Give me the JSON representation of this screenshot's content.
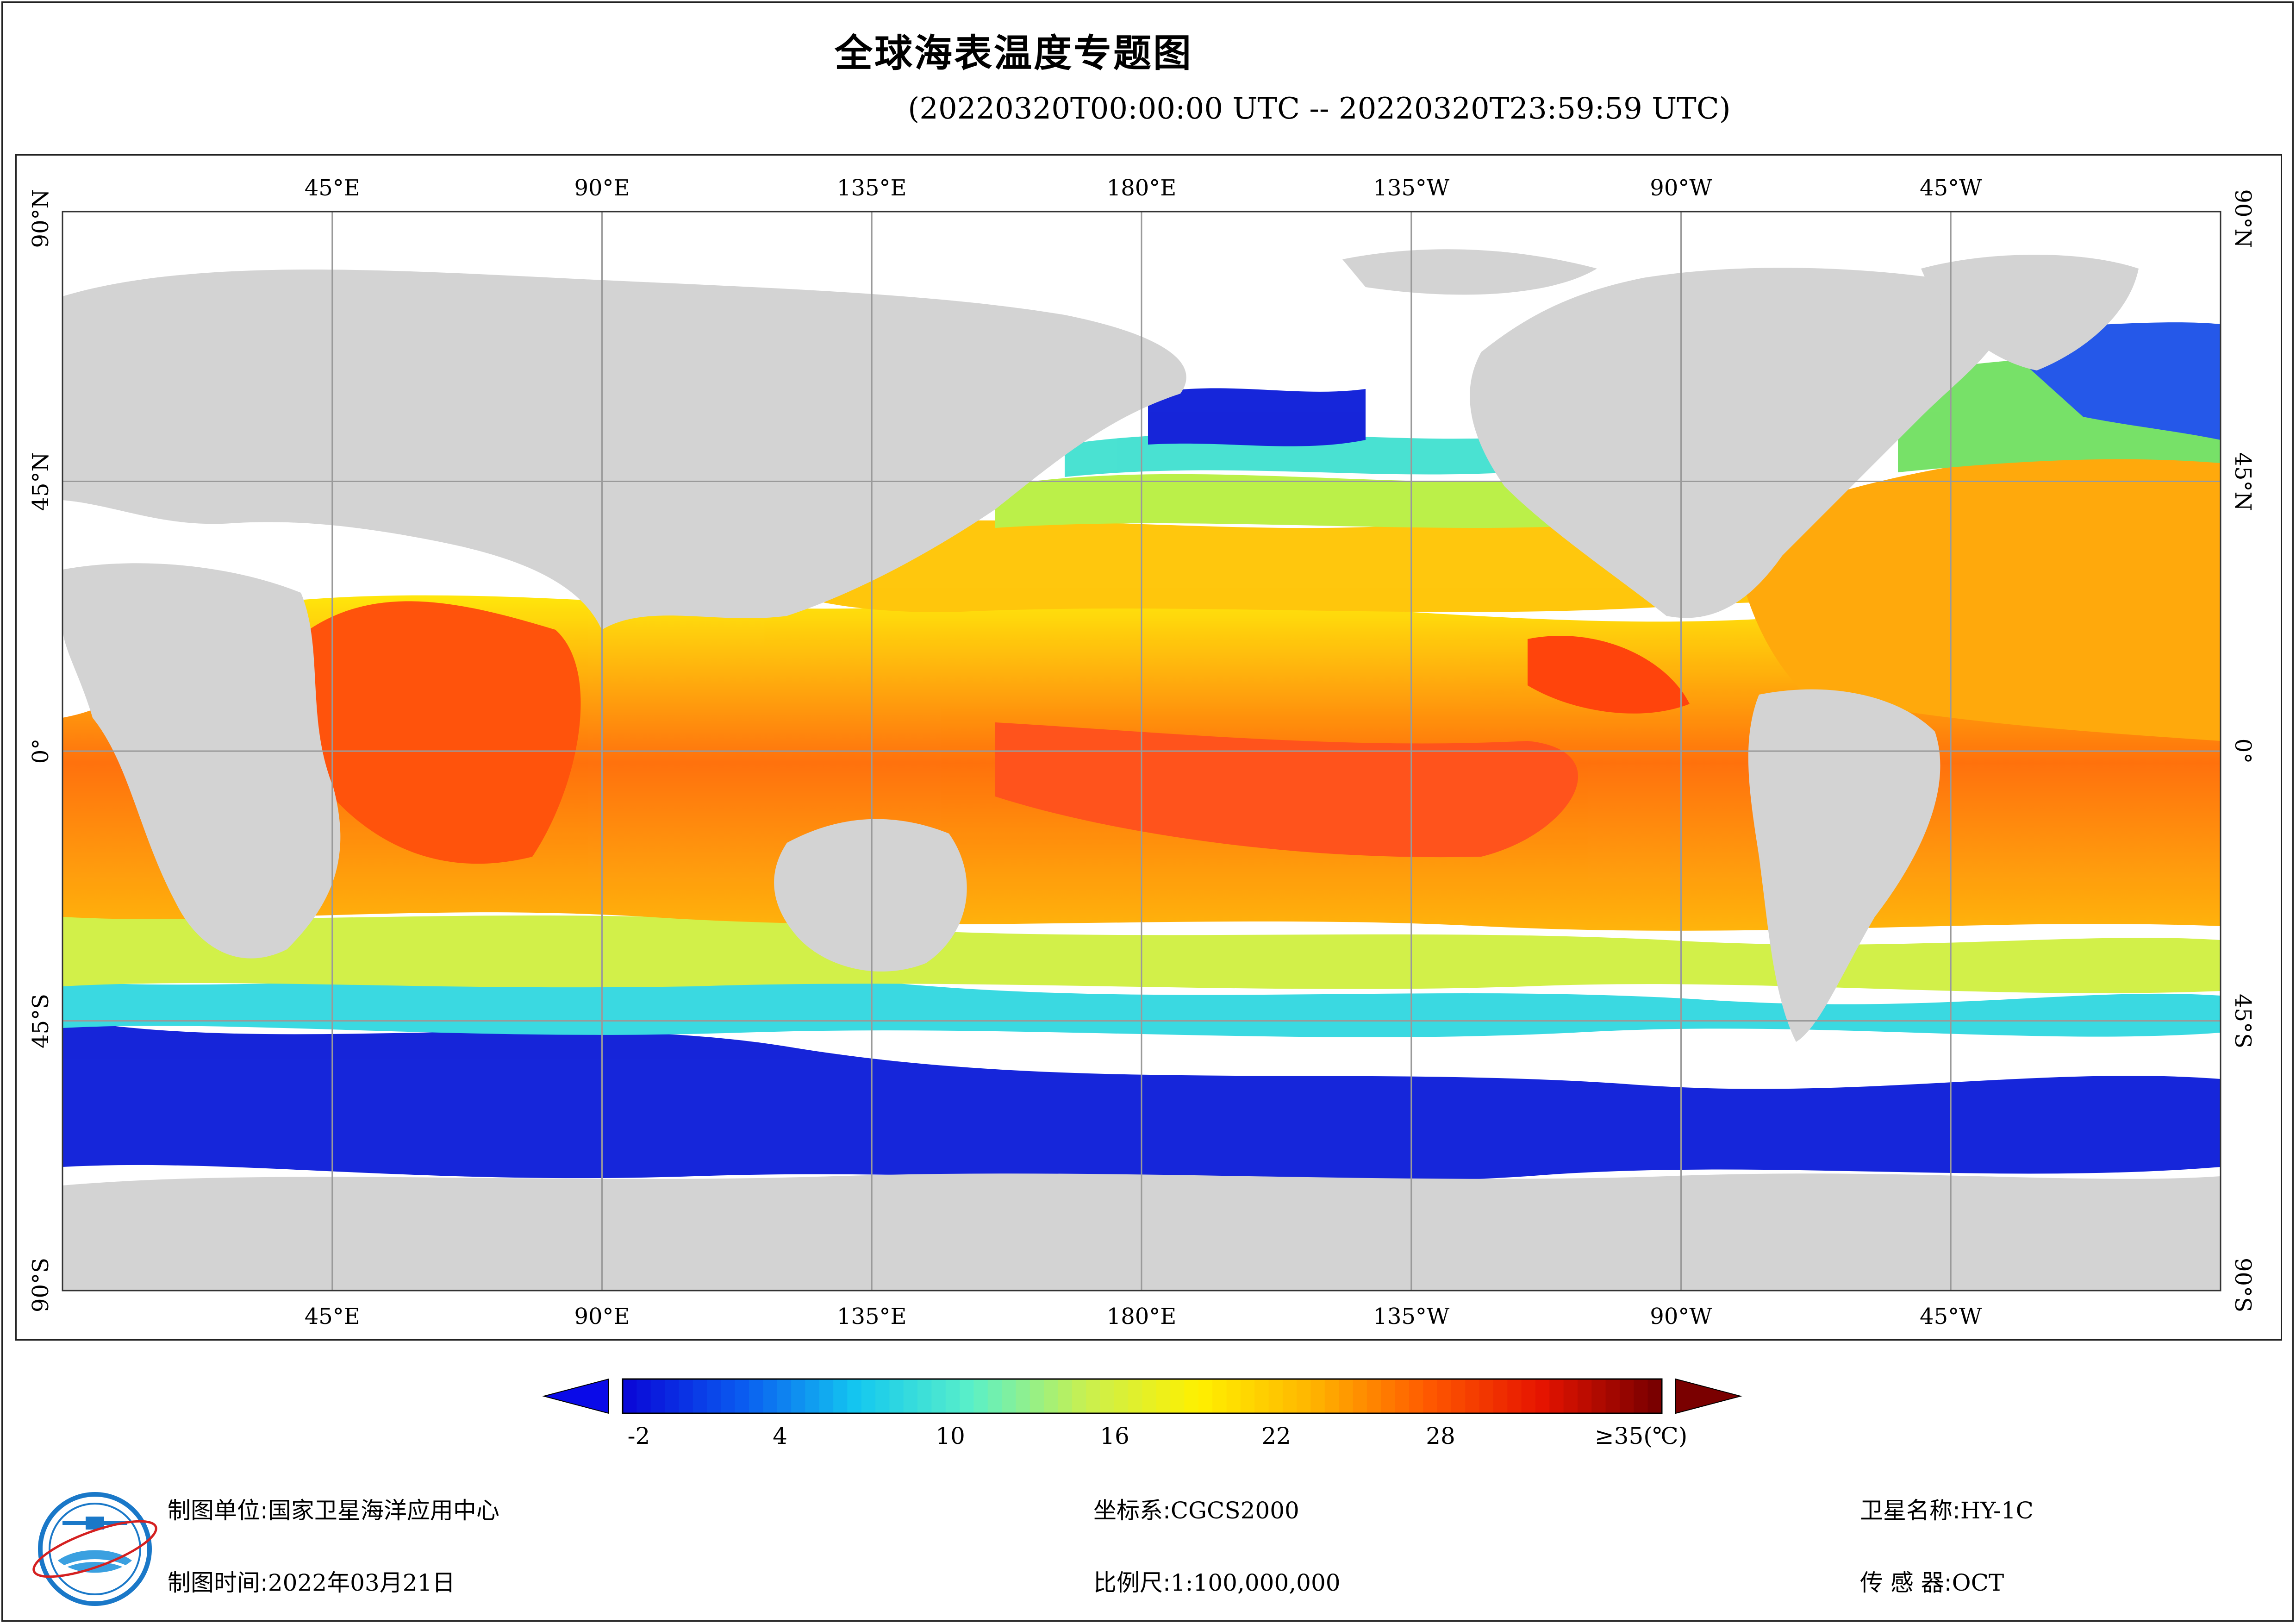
{
  "title": "全球海表温度专题图",
  "subtitle": "(20220320T00:00:00 UTC -- 20220320T23:59:59 UTC)",
  "map": {
    "lon_labels_top": [
      "45°E",
      "90°E",
      "135°E",
      "180°E",
      "135°W",
      "90°W",
      "45°W"
    ],
    "lon_labels_bottom": [
      "45°E",
      "90°E",
      "135°E",
      "180°E",
      "135°W",
      "90°W",
      "45°W"
    ],
    "lat_labels": [
      "90°N",
      "45°N",
      "0°",
      "45°S",
      "90°S"
    ],
    "colors": {
      "land": "#d3d3d3",
      "nodata": "#ffffff",
      "grid": "#9a9a9a"
    }
  },
  "colorbar": {
    "unit_suffix": "(℃)",
    "ticks": [
      "-2",
      "4",
      "10",
      "16",
      "22",
      "28",
      "≥35"
    ],
    "tick_values": [
      -2,
      4,
      10,
      16,
      22,
      28,
      35
    ],
    "min": -2,
    "max": 35,
    "stops": [
      "#0a0ad8",
      "#0a5cf0",
      "#14c8f0",
      "#5af0c8",
      "#c8f050",
      "#fff000",
      "#ffb400",
      "#ff5a00",
      "#e61400",
      "#7a0000"
    ]
  },
  "footer": {
    "unit_label": "制图单位:",
    "unit_value": "国家卫星海洋应用中心",
    "time_label": "制图时间:",
    "time_value": "2022年03月21日",
    "crs_label": "坐标系:",
    "crs_value": "CGCS2000",
    "scale_label": "比例尺:",
    "scale_value": "1:100,000,000",
    "sat_label": "卫星名称:",
    "sat_value": "HY-1C",
    "sensor_label": "传 感 器:",
    "sensor_value": "OCT",
    "logo_icon": "nsoas-logo-icon"
  }
}
